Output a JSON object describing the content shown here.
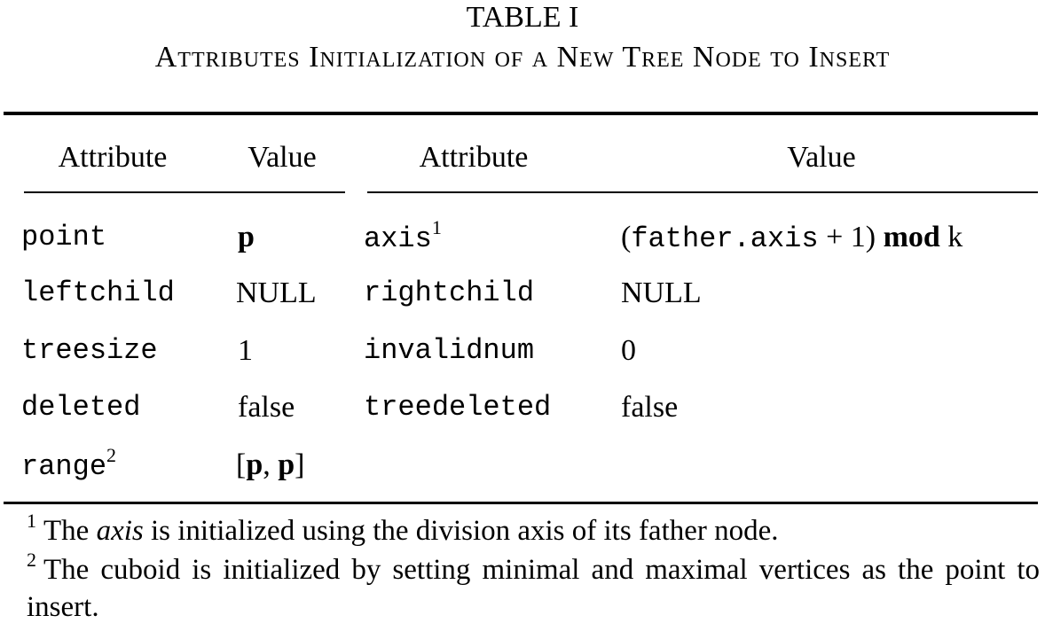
{
  "caption": {
    "number": "TABLE I",
    "title": "Attributes Initialization of a New Tree Node to Insert"
  },
  "headers": [
    "Attribute",
    "Value",
    "Attribute",
    "Value"
  ],
  "rows": [
    {
      "attr1": "point",
      "val1": "p",
      "attr2": "axis",
      "attr2_sup": "1",
      "val2": {
        "paren_open": "(",
        "code": "father.axis",
        "plus": " + 1) ",
        "mod": "mod",
        "k": " k"
      }
    },
    {
      "attr1": "leftchild",
      "val1": "NULL",
      "attr2": "rightchild",
      "val2": "NULL"
    },
    {
      "attr1": "treesize",
      "val1": "1",
      "attr2": "invalidnum",
      "val2": "0"
    },
    {
      "attr1": "deleted",
      "val1": "false",
      "attr2": "treedeleted",
      "val2": "false"
    },
    {
      "attr1": "range",
      "attr1_sup": "2",
      "val1": {
        "open": "[",
        "p1": "p",
        "comma": ", ",
        "p2": "p",
        "close": "]"
      }
    }
  ],
  "footnotes": [
    {
      "marker": "1",
      "pre": "The ",
      "italic": "axis",
      "post": " is initialized using the division axis of its father node."
    },
    {
      "marker": "2",
      "text": "The cuboid is initialized by setting minimal and maximal vertices as the point to insert."
    }
  ]
}
